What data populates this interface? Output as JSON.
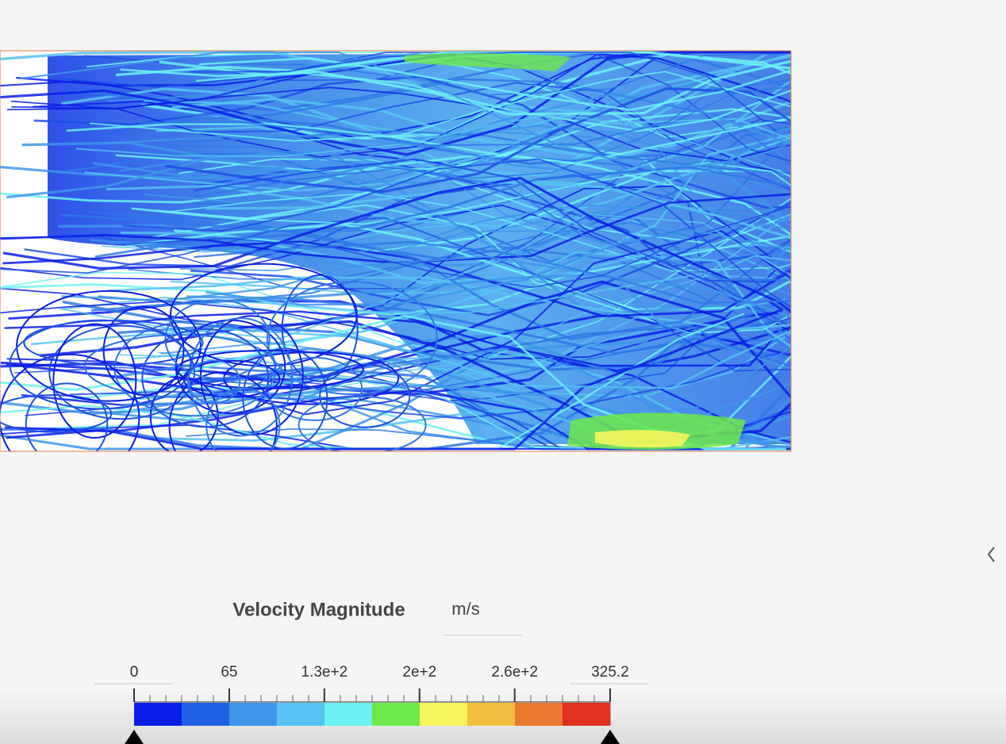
{
  "legend": {
    "title": "Velocity Magnitude",
    "unit": "m/s",
    "range": [
      0,
      325.2
    ],
    "ticks": [
      65,
      {
        "value": 130,
        "label": "1.3e+2"
      },
      {
        "value": 195,
        "label": "2e+2"
      },
      {
        "value": 260,
        "label": "2.6e+2"
      }
    ],
    "colors": [
      "#0b1fe6",
      "#2260e6",
      "#3f95ea",
      "#56c3f2",
      "#6cf2f2",
      "#6de84a",
      "#f6f55c",
      "#f1bd3f",
      "#e8792f",
      "#e0301f"
    ]
  }
}
